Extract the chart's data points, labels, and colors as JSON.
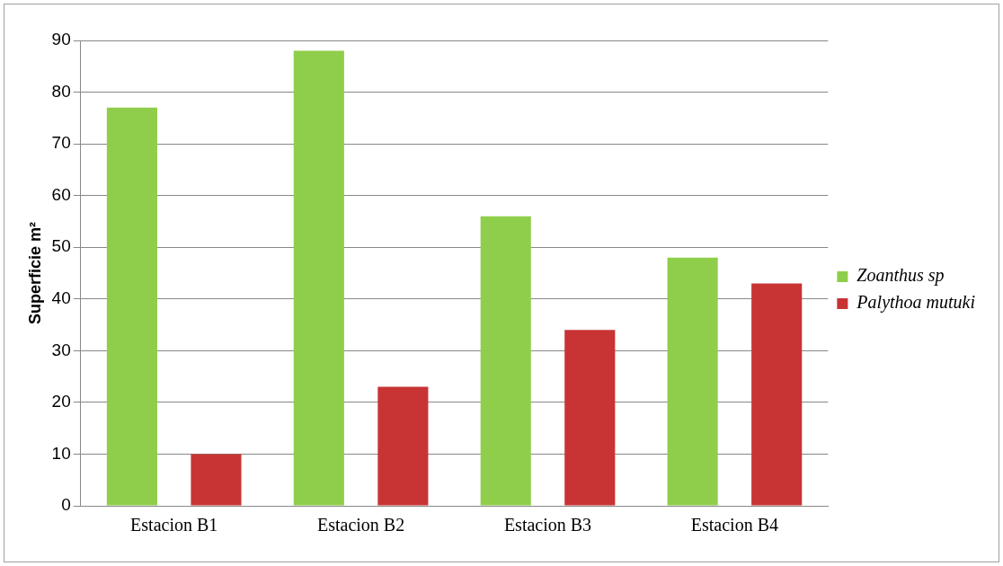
{
  "chart_data": {
    "type": "bar",
    "ylabel": "Superficie m²",
    "categories": [
      "Estacion B1",
      "Estacion B2",
      "Estacion B3",
      "Estacion B4"
    ],
    "series": [
      {
        "name": "Zoanthus sp",
        "color": "#8fce4a",
        "values": [
          77,
          88,
          56,
          48
        ]
      },
      {
        "name": "Palythoa mutuki",
        "color": "#c83434",
        "values": [
          10,
          23,
          34,
          43
        ]
      }
    ],
    "ylim": [
      0,
      90
    ],
    "yticks": [
      0,
      10,
      20,
      30,
      40,
      50,
      60,
      70,
      80,
      90
    ],
    "grid": "y",
    "legend": "right"
  }
}
